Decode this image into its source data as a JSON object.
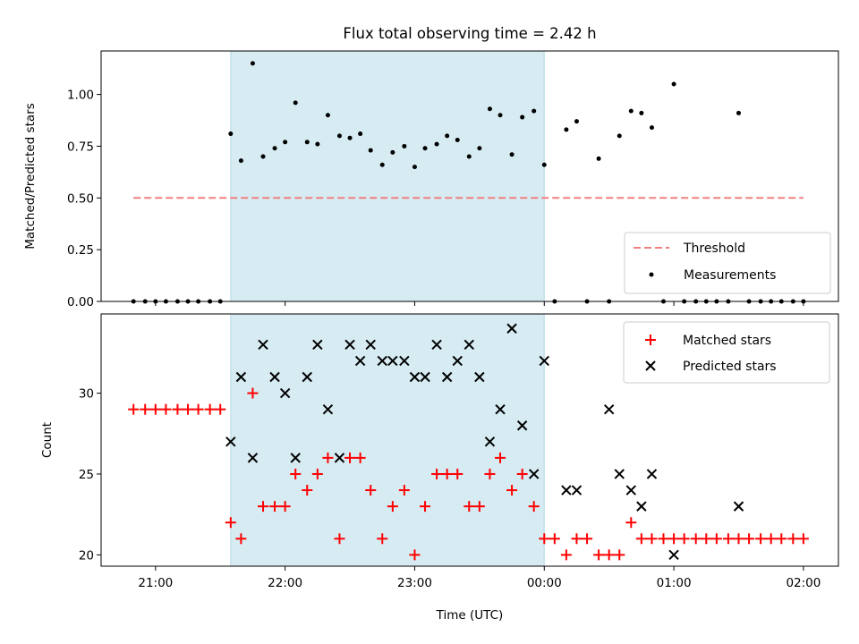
{
  "chart_data": [
    {
      "type": "scatter",
      "title": "Flux total observing time = 2.42 h",
      "xlabel": "",
      "ylabel": "Matched/Predicted stars",
      "xlim": [
        20.58,
        26.27
      ],
      "ylim": [
        0.0,
        1.21
      ],
      "yticks": [
        0.0,
        0.25,
        0.5,
        0.75,
        1.0
      ],
      "ytick_labels": [
        "0.00",
        "0.25",
        "0.50",
        "0.75",
        "1.00"
      ],
      "xticks": [
        21,
        22,
        23,
        24,
        25,
        26
      ],
      "shaded_span": {
        "x": [
          21.58,
          24.0
        ],
        "color": "#add8e6"
      },
      "legend": {
        "position": "lower-right",
        "entries": [
          "Threshold",
          "Measurements"
        ]
      },
      "threshold": {
        "name": "Threshold",
        "x": [
          20.83,
          26.0
        ],
        "y": 0.5,
        "color": "#f08080"
      },
      "measurements": {
        "name": "Measurements",
        "color": "#000000",
        "x": [
          20.83,
          20.92,
          21.0,
          21.08,
          21.17,
          21.25,
          21.33,
          21.42,
          21.5,
          21.58,
          21.66,
          21.75,
          21.83,
          21.92,
          22.0,
          22.08,
          22.17,
          22.25,
          22.33,
          22.42,
          22.5,
          22.58,
          22.66,
          22.75,
          22.83,
          22.92,
          23.0,
          23.08,
          23.17,
          23.25,
          23.33,
          23.42,
          23.5,
          23.58,
          23.66,
          23.75,
          23.83,
          23.92,
          24.0,
          24.08,
          24.17,
          24.25,
          24.33,
          24.42,
          24.5,
          24.58,
          24.67,
          24.75,
          24.83,
          24.92,
          25.0,
          25.08,
          25.17,
          25.25,
          25.33,
          25.42,
          25.5,
          25.58,
          25.67,
          25.75,
          25.83,
          25.92,
          26.0
        ],
        "y": [
          0.0,
          0.0,
          0.0,
          0.0,
          0.0,
          0.0,
          0.0,
          0.0,
          0.0,
          0.81,
          0.68,
          1.15,
          0.7,
          0.74,
          0.77,
          0.96,
          0.77,
          0.76,
          0.9,
          0.8,
          0.79,
          0.81,
          0.73,
          0.66,
          0.72,
          0.75,
          0.65,
          0.74,
          0.76,
          0.8,
          0.78,
          0.7,
          0.74,
          0.93,
          0.9,
          0.71,
          0.89,
          0.92,
          0.66,
          0.0,
          0.83,
          0.87,
          0.0,
          0.69,
          0.0,
          0.8,
          0.92,
          0.91,
          0.84,
          0.0,
          1.05,
          0.0,
          0.0,
          0.0,
          0.0,
          0.0,
          0.91,
          0.0,
          0.0,
          0.0,
          0.0,
          0.0,
          0.0
        ]
      }
    },
    {
      "type": "scatter",
      "title": "",
      "xlabel": "Time (UTC)",
      "ylabel": "Count",
      "xlim": [
        20.58,
        26.27
      ],
      "ylim": [
        19.3,
        34.9
      ],
      "yticks": [
        20,
        25,
        30
      ],
      "ytick_labels": [
        "20",
        "25",
        "30"
      ],
      "xticks": [
        21,
        22,
        23,
        24,
        25,
        26
      ],
      "xtick_labels": [
        "21:00",
        "22:00",
        "23:00",
        "00:00",
        "01:00",
        "02:00"
      ],
      "shaded_span": {
        "x": [
          21.58,
          24.0
        ],
        "color": "#add8e6"
      },
      "legend": {
        "position": "top-right",
        "entries": [
          "Matched stars",
          "Predicted stars"
        ]
      },
      "series": [
        {
          "name": "Matched stars",
          "marker": "+",
          "color": "#ff0000",
          "x": [
            20.83,
            20.92,
            21.0,
            21.08,
            21.17,
            21.25,
            21.33,
            21.42,
            21.5,
            21.58,
            21.66,
            21.75,
            21.83,
            21.92,
            22.0,
            22.08,
            22.17,
            22.25,
            22.33,
            22.42,
            22.5,
            22.58,
            22.66,
            22.75,
            22.83,
            22.92,
            23.0,
            23.08,
            23.17,
            23.25,
            23.33,
            23.42,
            23.5,
            23.58,
            23.66,
            23.75,
            23.83,
            23.92,
            24.0,
            24.08,
            24.17,
            24.25,
            24.33,
            24.42,
            24.5,
            24.58,
            24.67,
            24.75,
            24.83,
            24.92,
            25.0,
            25.08,
            25.17,
            25.25,
            25.33,
            25.42,
            25.5,
            25.58,
            25.67,
            25.75,
            25.83,
            25.92,
            26.0
          ],
          "y": [
            29,
            29,
            29,
            29,
            29,
            29,
            29,
            29,
            29,
            22,
            21,
            30,
            23,
            23,
            23,
            25,
            24,
            25,
            26,
            21,
            26,
            26,
            24,
            21,
            23,
            24,
            20,
            23,
            25,
            25,
            25,
            23,
            23,
            25,
            26,
            24,
            25,
            23,
            21,
            21,
            20,
            21,
            21,
            20,
            20,
            20,
            22,
            21,
            21,
            21,
            21,
            21,
            21,
            21,
            21,
            21,
            21,
            21,
            21,
            21,
            21,
            21,
            21
          ]
        },
        {
          "name": "Predicted stars",
          "marker": "x",
          "color": "#000000",
          "x": [
            21.58,
            21.66,
            21.75,
            21.83,
            21.92,
            22.0,
            22.08,
            22.17,
            22.25,
            22.33,
            22.42,
            22.5,
            22.58,
            22.66,
            22.75,
            22.83,
            22.92,
            23.0,
            23.08,
            23.17,
            23.25,
            23.33,
            23.42,
            23.5,
            23.58,
            23.66,
            23.75,
            23.83,
            23.92,
            24.0,
            24.17,
            24.25,
            24.5,
            24.58,
            24.67,
            24.75,
            24.83,
            25.0,
            25.5
          ],
          "y": [
            27,
            31,
            26,
            33,
            31,
            30,
            26,
            31,
            33,
            29,
            26,
            33,
            32,
            33,
            32,
            32,
            32,
            31,
            31,
            33,
            31,
            32,
            33,
            31,
            27,
            29,
            34,
            28,
            25,
            32,
            24,
            24,
            29,
            25,
            24,
            23,
            25,
            20,
            23
          ]
        }
      ]
    }
  ]
}
